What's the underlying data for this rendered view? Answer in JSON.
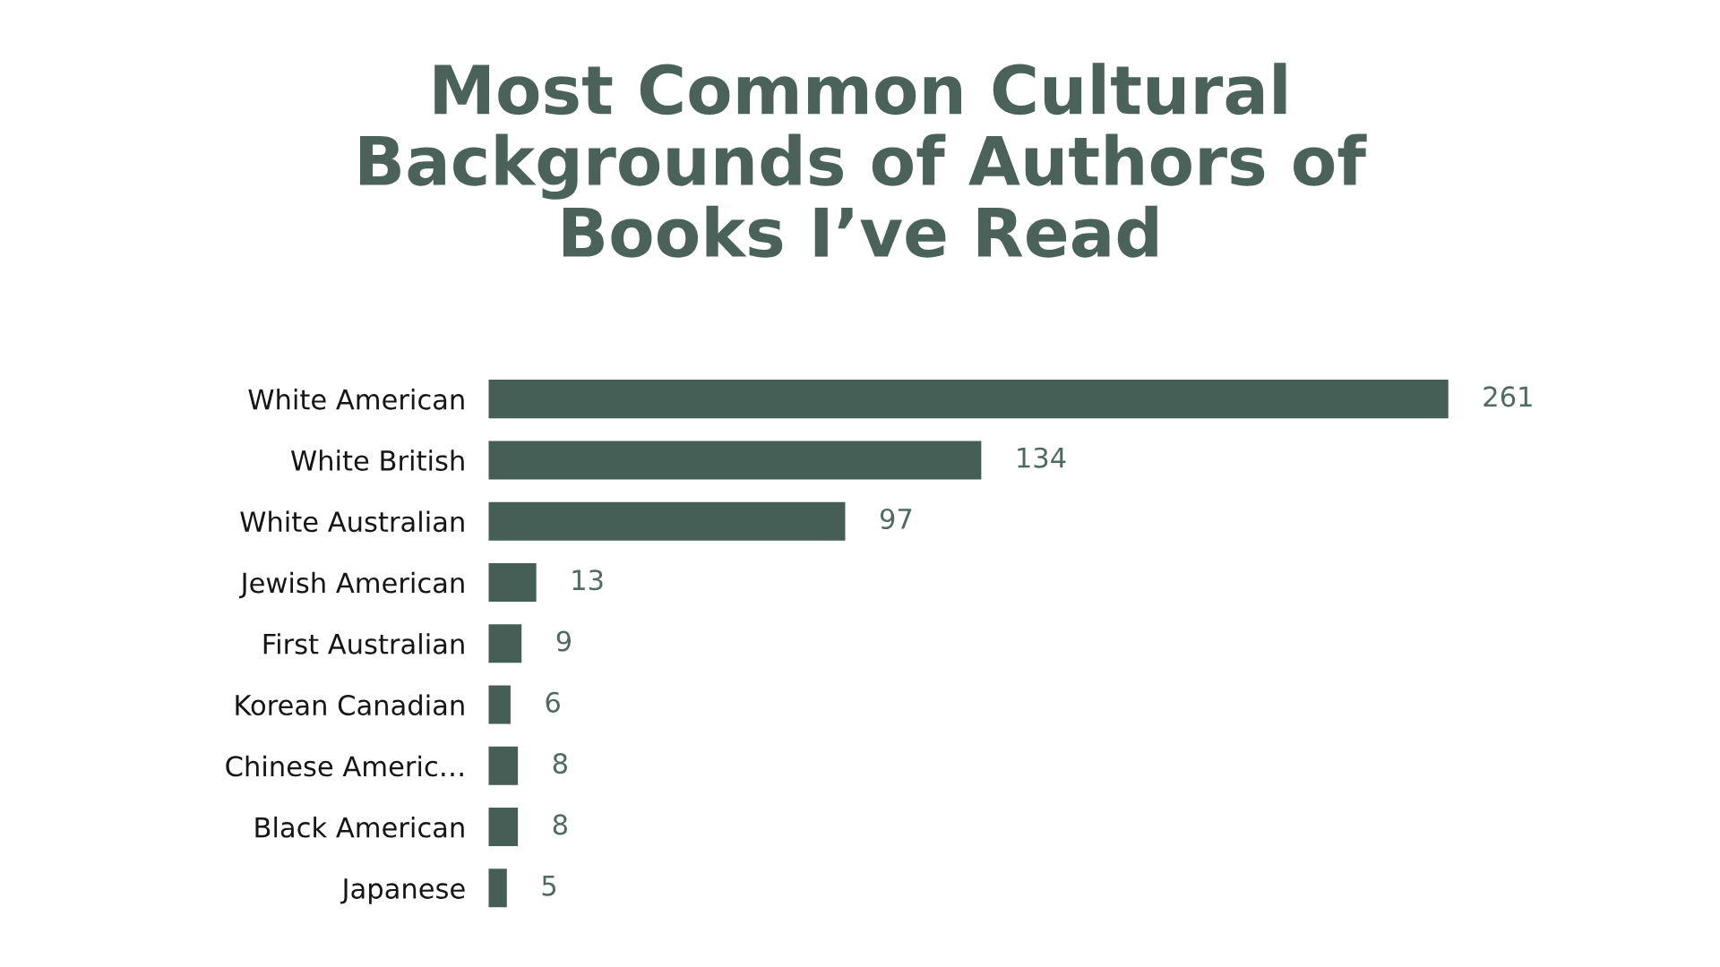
{
  "chart_data": {
    "type": "bar",
    "orientation": "horizontal",
    "title": "Most Common Cultural Backgrounds of Authors of Books I’ve Read",
    "categories": [
      "White American",
      "White British",
      "White Australian",
      "Jewish American",
      "First Australian",
      "Korean Canadian",
      "Chinese Americ…",
      "Black American",
      "Japanese"
    ],
    "values": [
      261,
      134,
      97,
      13,
      9,
      6,
      8,
      8,
      5
    ],
    "color": "#455e56",
    "data_labels": true
  }
}
